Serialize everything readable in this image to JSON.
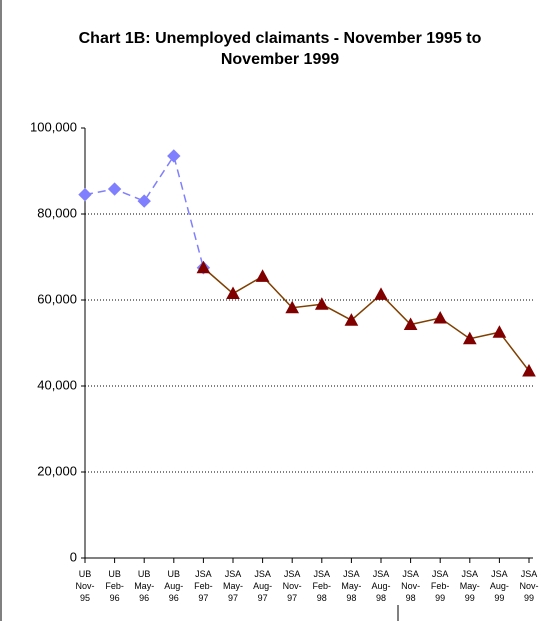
{
  "chart_data": {
    "type": "line",
    "title": "Chart 1B:  Unemployed claimants - November 1995 to November 1999",
    "categories": [
      "UB Nov-95",
      "UB Feb-96",
      "UB May-96",
      "UB Aug-96",
      "JSA Feb-97",
      "JSA May-97",
      "JSA Aug-97",
      "JSA Nov-97",
      "JSA Feb-98",
      "JSA May-98",
      "JSA Aug-98",
      "JSA Nov-98",
      "JSA Feb-99",
      "JSA May-99",
      "JSA Aug-99",
      "JSA Nov-99"
    ],
    "series": [
      {
        "color": "#8080ff",
        "marker": "diamond",
        "dashed": true,
        "values": [
          84500,
          85800,
          83000,
          93500,
          67500,
          null,
          null,
          null,
          null,
          null,
          null,
          null,
          null,
          null,
          null,
          null
        ]
      },
      {
        "color": "#7f3f00",
        "marker": "triangle",
        "marker_color": "#800000",
        "dashed": false,
        "values": [
          null,
          null,
          null,
          null,
          67500,
          61500,
          65500,
          58200,
          59000,
          55300,
          61300,
          54300,
          55800,
          51000,
          52500,
          43500
        ]
      }
    ],
    "ylim": [
      0,
      100000
    ],
    "yticks": [
      0,
      {
        "value": 20000,
        "label": "20,000"
      },
      {
        "value": 40000,
        "label": "40,000"
      },
      {
        "value": 60000,
        "label": "60,000"
      },
      {
        "value": 80000,
        "label": "80,000"
      },
      {
        "value": 100000,
        "label": "100,000"
      }
    ],
    "grid": true
  }
}
